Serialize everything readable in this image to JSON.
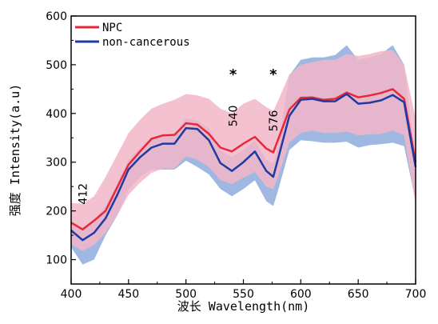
{
  "chart_data": {
    "type": "line",
    "xlabel": "波长 Wavelength(nm)",
    "ylabel": "强度 Intensity(a.u)",
    "xlim": [
      400,
      700
    ],
    "ylim": [
      50,
      600
    ],
    "xticks": [
      400,
      450,
      500,
      550,
      600,
      650,
      700
    ],
    "yticks": [
      100,
      200,
      300,
      400,
      500,
      600
    ],
    "grid": false,
    "legend_position": "top-left",
    "x": [
      400,
      410,
      420,
      430,
      440,
      450,
      460,
      470,
      480,
      490,
      500,
      510,
      520,
      530,
      540,
      550,
      560,
      570,
      576,
      580,
      590,
      600,
      610,
      620,
      630,
      640,
      650,
      660,
      670,
      680,
      690,
      700
    ],
    "series": [
      {
        "name": "NPC",
        "color": "#e8283a",
        "values": [
          176,
          162,
          180,
          200,
          248,
          295,
          322,
          348,
          355,
          356,
          380,
          377,
          358,
          330,
          322,
          338,
          352,
          328,
          320,
          345,
          408,
          432,
          433,
          428,
          430,
          443,
          433,
          437,
          442,
          450,
          430,
          300
        ],
        "band_color": "#f2b6c8",
        "band_upper": [
          216,
          215,
          230,
          270,
          315,
          360,
          387,
          410,
          420,
          428,
          440,
          437,
          430,
          410,
          400,
          420,
          430,
          413,
          405,
          425,
          480,
          500,
          505,
          510,
          510,
          522,
          518,
          522,
          528,
          530,
          500,
          390
        ],
        "band_lower": [
          132,
          118,
          130,
          155,
          190,
          233,
          258,
          278,
          287,
          287,
          312,
          305,
          290,
          263,
          255,
          268,
          280,
          250,
          245,
          268,
          340,
          360,
          365,
          360,
          360,
          363,
          355,
          357,
          358,
          365,
          355,
          215
        ]
      },
      {
        "name": "non-cancerous",
        "color": "#1f3aa0",
        "values": [
          160,
          140,
          155,
          185,
          232,
          285,
          310,
          330,
          338,
          338,
          370,
          368,
          345,
          298,
          282,
          300,
          322,
          282,
          270,
          305,
          395,
          428,
          430,
          425,
          425,
          440,
          420,
          422,
          427,
          438,
          423,
          290
        ],
        "band_color": "#8eabdc",
        "band_upper": [
          180,
          165,
          180,
          210,
          255,
          305,
          330,
          350,
          355,
          355,
          390,
          385,
          370,
          325,
          310,
          325,
          345,
          305,
          298,
          330,
          478,
          510,
          515,
          515,
          520,
          540,
          510,
          515,
          522,
          540,
          500,
          300
        ],
        "band_lower": [
          125,
          90,
          100,
          150,
          190,
          243,
          270,
          285,
          285,
          285,
          303,
          290,
          275,
          245,
          230,
          245,
          263,
          220,
          210,
          240,
          325,
          345,
          343,
          340,
          340,
          342,
          330,
          335,
          337,
          340,
          333,
          220
        ]
      }
    ],
    "annotations": [
      {
        "label": "412",
        "x": 410,
        "y": 235,
        "rotate": true
      },
      {
        "label": "540",
        "x": 541,
        "y": 395,
        "rotate": true
      },
      {
        "label": "*",
        "x": 541,
        "y": 470,
        "rotate": false
      },
      {
        "label": "576",
        "x": 576,
        "y": 385,
        "rotate": true
      },
      {
        "label": "*",
        "x": 576,
        "y": 470,
        "rotate": false
      }
    ]
  }
}
